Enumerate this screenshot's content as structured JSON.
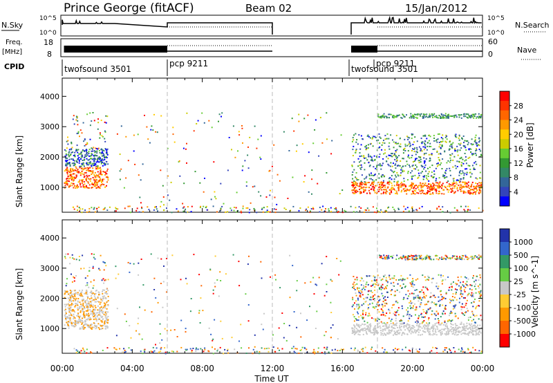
{
  "header": {
    "station": "Prince George (fitACF)",
    "beam": "Beam 02",
    "date": "15/Jan/2012"
  },
  "top_panels": {
    "nsky_label": "N.Sky",
    "nsearch_label": "N.Search",
    "freq_label": "Freq.",
    "freq_unit": "[MHz]",
    "nave_label": "Nave",
    "cpid_label": "CPID",
    "nsky_ticks": [
      "10^5",
      "10^0"
    ],
    "nsearch_ticks": [
      "10^5",
      "10^0"
    ],
    "freq_ticks": [
      "18",
      "8"
    ],
    "nave_ticks": [
      "60",
      "0"
    ],
    "cpid_segments": [
      {
        "label": "twofsound 3501",
        "start_h": 0.0
      },
      {
        "label": "pcp 9211",
        "start_h": 6.0
      },
      {
        "label": "twofsound 3501",
        "start_h": 16.5
      },
      {
        "label": "pcp 9211",
        "start_h": 18.0
      }
    ]
  },
  "chart_data": [
    {
      "type": "heatmap",
      "title": "Power",
      "xlabel": "Time UT",
      "ylabel": "Slant Range [km]",
      "xlim": [
        "00:00",
        "00:00"
      ],
      "ylim": [
        180,
        4600
      ],
      "x_ticks": [
        "00:00",
        "04:00",
        "08:00",
        "12:00",
        "16:00",
        "20:00",
        "00:00"
      ],
      "y_ticks": [
        "1000",
        "2000",
        "3000",
        "4000"
      ],
      "colorbar": {
        "label": "Power [dB]",
        "ticks": [
          "28",
          "24",
          "20",
          "16",
          "12",
          "8",
          "4"
        ],
        "colors": [
          "#ff0000",
          "#ff3300",
          "#ff6600",
          "#ff9900",
          "#ffcc00",
          "#cccc00",
          "#66cc33",
          "#339933",
          "#338866",
          "#336699",
          "#3344bb",
          "#0000ff"
        ]
      },
      "data_gaps_h": [
        [
          3.0,
          16.4
        ]
      ],
      "regions": [
        {
          "t0": 0.1,
          "t1": 2.6,
          "r0": 1000,
          "r1": 2300,
          "level": "high"
        },
        {
          "t0": 16.5,
          "t1": 23.9,
          "r0": 800,
          "r1": 2200,
          "level": "mixed"
        },
        {
          "t0": 18.0,
          "t1": 23.9,
          "r0": 3300,
          "r1": 3450,
          "level": "low"
        }
      ]
    },
    {
      "type": "heatmap",
      "title": "Velocity",
      "xlabel": "Time UT",
      "ylabel": "Slant Range [km]",
      "xlim": [
        "00:00",
        "00:00"
      ],
      "ylim": [
        180,
        4600
      ],
      "x_ticks": [
        "00:00",
        "04:00",
        "08:00",
        "12:00",
        "16:00",
        "20:00",
        "00:00"
      ],
      "y_ticks": [
        "1000",
        "2000",
        "3000",
        "4000"
      ],
      "colorbar": {
        "label": "Velocity [m s^-1]",
        "ticks": [
          "1000",
          "500",
          "100",
          "25",
          "-25",
          "-100",
          "-500",
          "-1000"
        ],
        "colors": [
          "#2233aa",
          "#3366cc",
          "#339966",
          "#66cc44",
          "#c8c8c8",
          "#ffcc33",
          "#ff9900",
          "#ff6600",
          "#ff0000"
        ]
      }
    }
  ]
}
